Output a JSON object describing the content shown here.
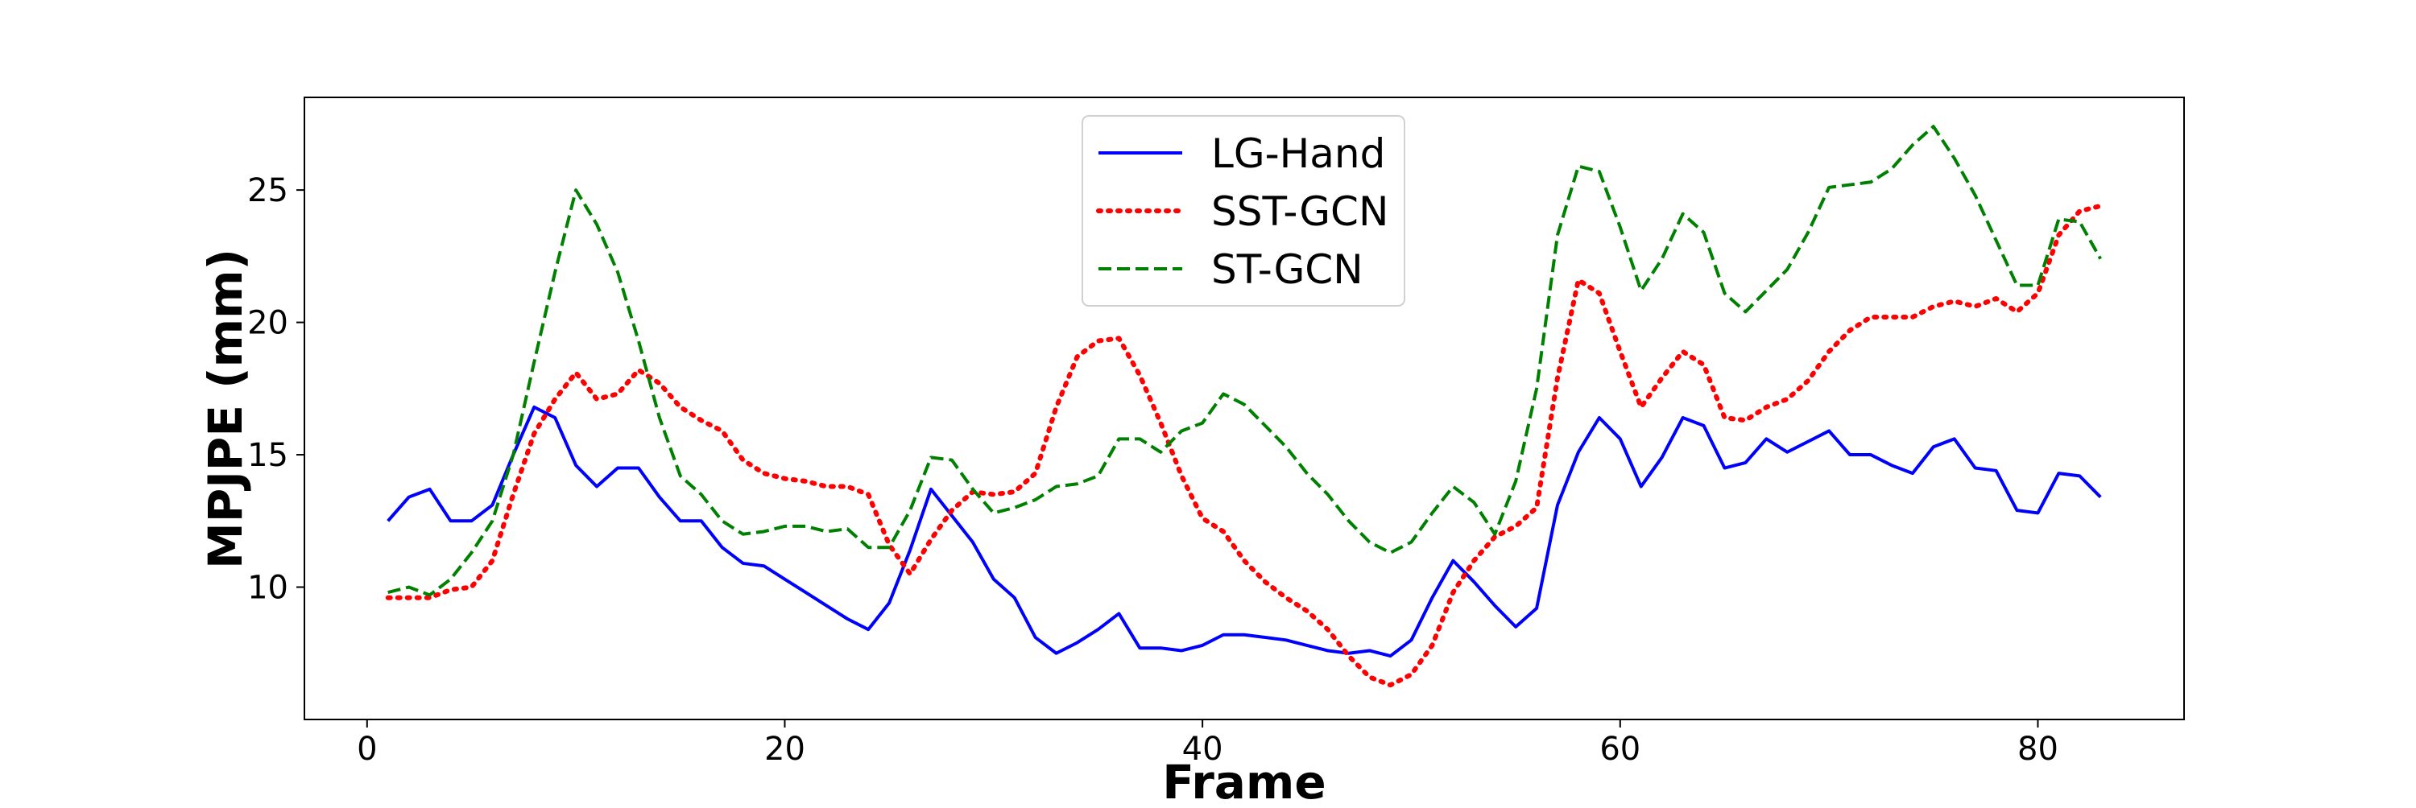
{
  "chart_data": {
    "type": "line",
    "title": "",
    "xlabel": "Frame",
    "ylabel": "MPJPE (mm)",
    "xlim": [
      -3,
      87
    ],
    "ylim": [
      5,
      28.5
    ],
    "xticks": [
      0,
      20,
      40,
      60,
      80
    ],
    "yticks": [
      10,
      15,
      20,
      25
    ],
    "grid": false,
    "legend_position": "top-center",
    "x": [
      1,
      2,
      3,
      4,
      5,
      6,
      7,
      8,
      9,
      10,
      11,
      12,
      13,
      14,
      15,
      16,
      17,
      18,
      19,
      20,
      21,
      22,
      23,
      24,
      25,
      26,
      27,
      28,
      29,
      30,
      31,
      32,
      33,
      34,
      35,
      36,
      37,
      38,
      39,
      40,
      41,
      42,
      43,
      44,
      45,
      46,
      47,
      48,
      49,
      50,
      51,
      52,
      53,
      54,
      55,
      56,
      57,
      58,
      59,
      60,
      61,
      62,
      63,
      64,
      65,
      66,
      67,
      68,
      69,
      70,
      71,
      72,
      73,
      74,
      75,
      76,
      77,
      78,
      79,
      80,
      81,
      82,
      83
    ],
    "series": [
      {
        "name": "LG-Hand",
        "color": "#0000ff",
        "style": "solid",
        "values": [
          12.5,
          13.4,
          13.7,
          12.5,
          12.5,
          13.1,
          15.0,
          16.8,
          16.4,
          14.6,
          13.8,
          14.5,
          14.5,
          13.4,
          12.5,
          12.5,
          11.5,
          10.9,
          10.8,
          10.3,
          9.8,
          9.3,
          8.8,
          8.4,
          9.4,
          11.4,
          13.7,
          12.7,
          11.7,
          10.3,
          9.6,
          8.1,
          7.5,
          7.9,
          8.4,
          9.0,
          7.7,
          7.7,
          7.6,
          7.8,
          8.2,
          8.2,
          8.1,
          8.0,
          7.8,
          7.6,
          7.5,
          7.6,
          7.4,
          8.0,
          9.6,
          11.0,
          10.2,
          9.3,
          8.5,
          9.2,
          13.1,
          15.1,
          16.4,
          15.6,
          13.8,
          14.9,
          16.4,
          16.1,
          14.5,
          14.7,
          15.6,
          15.1,
          15.5,
          15.9,
          15.0,
          15.0,
          14.6,
          14.3,
          15.3,
          15.6,
          14.5,
          14.4,
          12.9,
          12.8,
          14.3,
          14.2,
          13.4
        ]
      },
      {
        "name": "SST-GCN",
        "color": "#ff0000",
        "style": "dotted",
        "values": [
          9.6,
          9.6,
          9.6,
          9.9,
          10.0,
          11.0,
          13.5,
          15.8,
          17.1,
          18.1,
          17.1,
          17.3,
          18.2,
          17.7,
          16.8,
          16.3,
          15.9,
          14.8,
          14.3,
          14.1,
          14.0,
          13.8,
          13.8,
          13.5,
          11.6,
          10.5,
          11.8,
          12.9,
          13.6,
          13.5,
          13.6,
          14.3,
          16.8,
          18.7,
          19.3,
          19.4,
          18.0,
          16.2,
          14.2,
          12.6,
          12.1,
          11.0,
          10.2,
          9.6,
          9.1,
          8.4,
          7.4,
          6.6,
          6.3,
          6.7,
          7.8,
          9.8,
          11.0,
          11.9,
          12.3,
          13.0,
          17.9,
          21.6,
          21.1,
          18.9,
          16.8,
          17.9,
          18.9,
          18.4,
          16.4,
          16.3,
          16.8,
          17.1,
          17.8,
          18.9,
          19.7,
          20.2,
          20.2,
          20.2,
          20.6,
          20.8,
          20.6,
          20.9,
          20.4,
          21.1,
          23.3,
          24.2,
          24.4
        ]
      },
      {
        "name": "ST-GCN",
        "color": "#008000",
        "style": "dashed",
        "values": [
          9.8,
          10.0,
          9.7,
          10.3,
          11.3,
          12.5,
          15.0,
          18.5,
          21.9,
          25.0,
          23.7,
          21.9,
          19.3,
          16.4,
          14.2,
          13.5,
          12.5,
          12.0,
          12.1,
          12.3,
          12.3,
          12.1,
          12.2,
          11.5,
          11.5,
          12.9,
          14.9,
          14.8,
          13.7,
          12.8,
          13.0,
          13.3,
          13.8,
          13.9,
          14.2,
          15.6,
          15.6,
          15.1,
          15.9,
          16.2,
          17.3,
          16.9,
          16.1,
          15.3,
          14.3,
          13.5,
          12.5,
          11.7,
          11.3,
          11.7,
          12.8,
          13.8,
          13.2,
          12.0,
          14.0,
          17.5,
          23.3,
          25.9,
          25.7,
          23.6,
          21.2,
          22.4,
          24.1,
          23.4,
          21.1,
          20.4,
          21.2,
          22.0,
          23.4,
          25.1,
          25.2,
          25.3,
          25.8,
          26.7,
          27.4,
          26.2,
          24.8,
          23.1,
          21.4,
          21.4,
          23.9,
          23.8,
          22.4
        ]
      }
    ]
  }
}
